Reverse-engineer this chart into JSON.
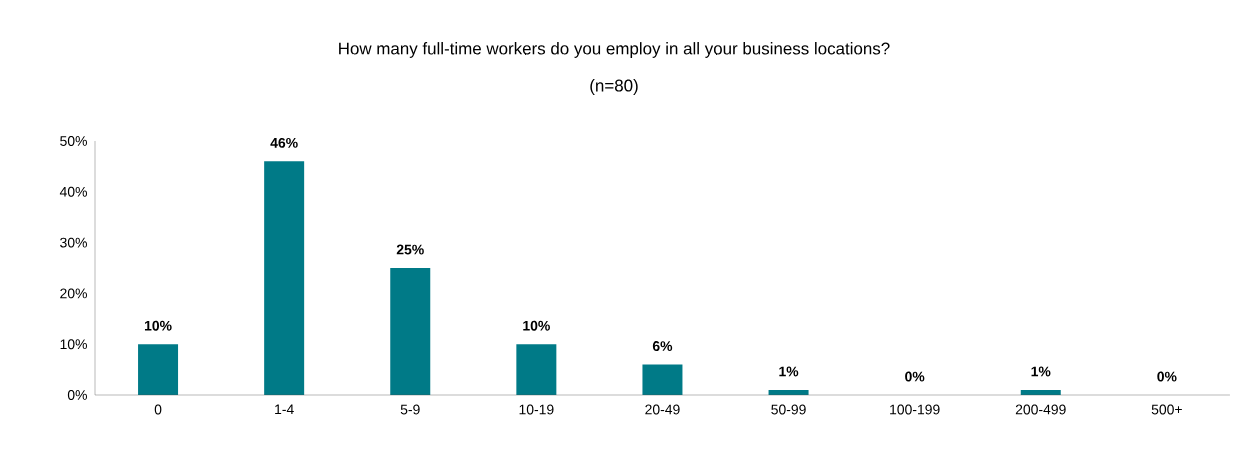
{
  "chart_data": {
    "type": "bar",
    "title": "How many full-time workers do you employ in all your business locations?",
    "subtitle": "(n=80)",
    "categories": [
      "0",
      "1-4",
      "5-9",
      "10-19",
      "20-49",
      "50-99",
      "100-199",
      "200-499",
      "500+"
    ],
    "values": [
      10,
      46,
      25,
      10,
      6,
      1,
      0,
      1,
      0
    ],
    "value_labels": [
      "10%",
      "46%",
      "25%",
      "10%",
      "6%",
      "1%",
      "0%",
      "1%",
      "0%"
    ],
    "color": "#007a87",
    "ylim": [
      0,
      50
    ],
    "yticks": [
      {
        "value": 0,
        "label": "0%"
      },
      {
        "value": 10,
        "label": "10%"
      },
      {
        "value": 20,
        "label": "20%"
      },
      {
        "value": 30,
        "label": "30%"
      },
      {
        "value": 40,
        "label": "40%"
      },
      {
        "value": 50,
        "label": "50%"
      }
    ],
    "grid": false
  }
}
